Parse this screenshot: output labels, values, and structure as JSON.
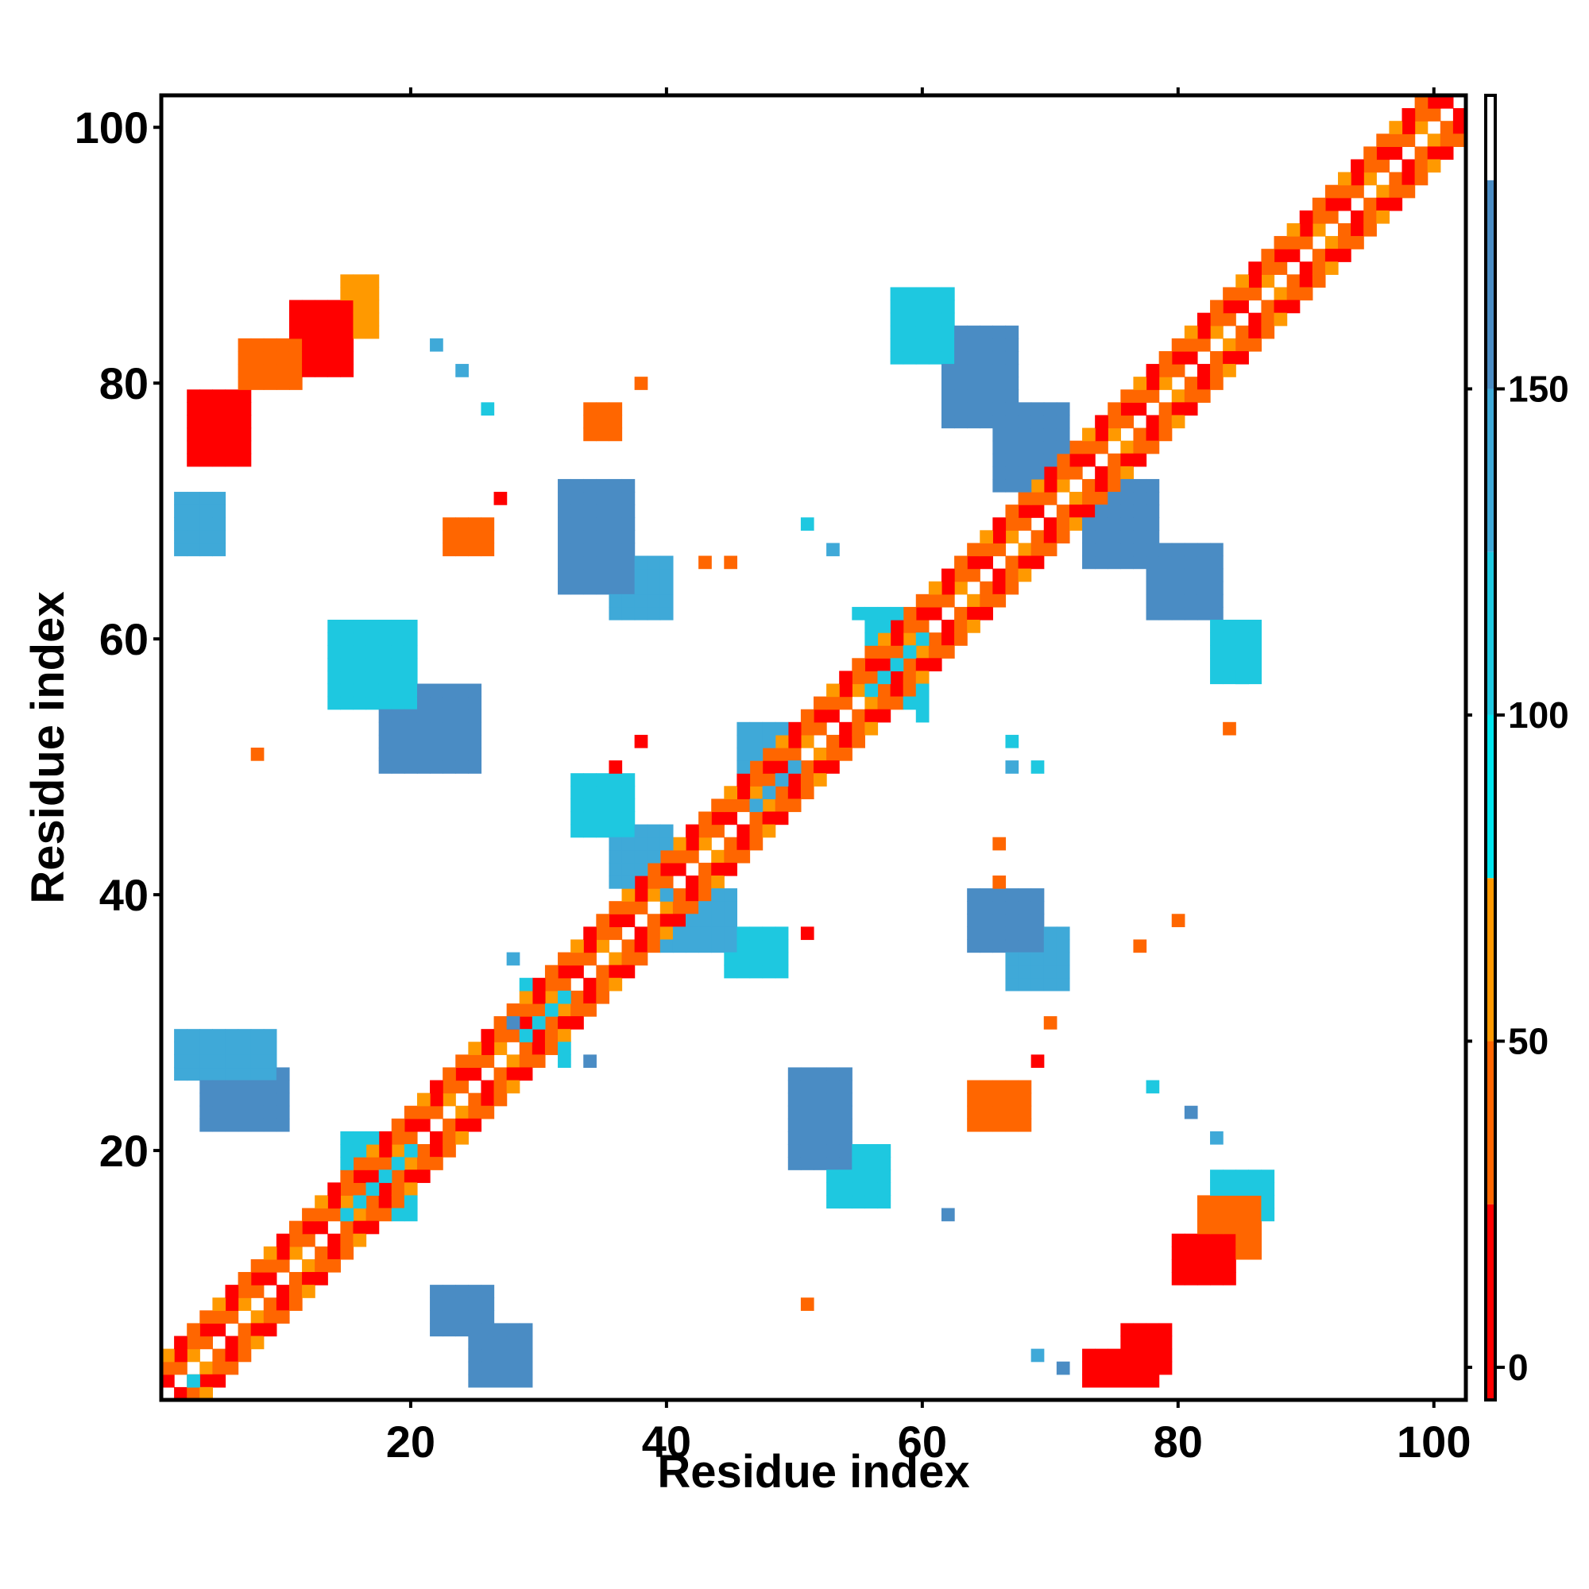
{
  "chart_data": {
    "type": "heatmap",
    "title": "",
    "xlabel": "Residue index",
    "ylabel": "Residue index",
    "xlim": [
      1,
      102
    ],
    "ylim": [
      1,
      102
    ],
    "x_ticks": [
      20,
      40,
      60,
      80,
      100
    ],
    "y_ticks": [
      20,
      40,
      60,
      80,
      100
    ],
    "colorbar": {
      "ticks": [
        0,
        50,
        100,
        150
      ],
      "range": [
        -5,
        195
      ],
      "bands": [
        {
          "from": -5,
          "to": 25,
          "color": "#ff0000"
        },
        {
          "from": 25,
          "to": 50,
          "color": "#ff6600"
        },
        {
          "from": 50,
          "to": 75,
          "color": "#ff9900"
        },
        {
          "from": 75,
          "to": 100,
          "color": "#00e5ee"
        },
        {
          "from": 100,
          "to": 125,
          "color": "#1ec8e0"
        },
        {
          "from": 125,
          "to": 150,
          "color": "#3fa9d8"
        },
        {
          "from": 150,
          "to": 182,
          "color": "#4a8cc4"
        },
        {
          "from": 182,
          "to": 195,
          "color": "#ffffff"
        }
      ]
    },
    "grid": false,
    "diagonal_bands": [
      {
        "offset": 1,
        "pattern": [
          "#ff6600",
          "#ff0000",
          "#ff6600",
          "#ff9900"
        ]
      },
      {
        "offset": 2,
        "pattern": [
          "#ff0000",
          "#ff6600",
          "#ff0000",
          "#ff6600"
        ]
      },
      {
        "offset": 3,
        "pattern": [
          "#ff6600",
          "#ff9900",
          "#ff0000",
          "#ff6600"
        ]
      }
    ],
    "regions": [
      {
        "x": [
          2,
          9
        ],
        "y": [
          26,
          29
        ],
        "color": "#3fa9d8"
      },
      {
        "x": [
          4,
          10
        ],
        "y": [
          22,
          26
        ],
        "color": "#4a8cc4"
      },
      {
        "x": [
          2,
          5
        ],
        "y": [
          67,
          71
        ],
        "color": "#3fa9d8"
      },
      {
        "x": [
          3,
          7
        ],
        "y": [
          74,
          79
        ],
        "color": "#ff0000"
      },
      {
        "x": [
          7,
          11
        ],
        "y": [
          80,
          83
        ],
        "color": "#ff6600"
      },
      {
        "x": [
          11,
          15
        ],
        "y": [
          81,
          86
        ],
        "color": "#ff0000"
      },
      {
        "x": [
          15,
          17
        ],
        "y": [
          84,
          88
        ],
        "color": "#ff9900"
      },
      {
        "x": [
          15,
          20
        ],
        "y": [
          15,
          21
        ],
        "color": "#1ec8e0"
      },
      {
        "x": [
          22,
          26
        ],
        "y": [
          6,
          9
        ],
        "color": "#4a8cc4"
      },
      {
        "x": [
          25,
          29
        ],
        "y": [
          2,
          6
        ],
        "color": "#4a8cc4"
      },
      {
        "x": [
          29,
          32
        ],
        "y": [
          28,
          33
        ],
        "color": "#1ec8e0"
      },
      {
        "x": [
          14,
          20
        ],
        "y": [
          55,
          61
        ],
        "color": "#1ec8e0"
      },
      {
        "x": [
          18,
          25
        ],
        "y": [
          50,
          56
        ],
        "color": "#4a8cc4"
      },
      {
        "x": [
          23,
          26
        ],
        "y": [
          67,
          69
        ],
        "color": "#ff6600"
      },
      {
        "x": [
          32,
          37
        ],
        "y": [
          64,
          72
        ],
        "color": "#4a8cc4"
      },
      {
        "x": [
          36,
          40
        ],
        "y": [
          62,
          66
        ],
        "color": "#3fa9d8"
      },
      {
        "x": [
          34,
          36
        ],
        "y": [
          76,
          78
        ],
        "color": "#ff6600"
      },
      {
        "x": [
          33,
          37
        ],
        "y": [
          45,
          49
        ],
        "color": "#1ec8e0"
      },
      {
        "x": [
          36,
          40
        ],
        "y": [
          41,
          45
        ],
        "color": "#3fa9d8"
      },
      {
        "x": [
          40,
          45
        ],
        "y": [
          36,
          40
        ],
        "color": "#3fa9d8"
      },
      {
        "x": [
          45,
          49
        ],
        "y": [
          34,
          37
        ],
        "color": "#1ec8e0"
      },
      {
        "x": [
          46,
          50
        ],
        "y": [
          47,
          53
        ],
        "color": "#3fa9d8"
      },
      {
        "x": [
          50,
          54
        ],
        "y": [
          19,
          26
        ],
        "color": "#4a8cc4"
      },
      {
        "x": [
          53,
          57
        ],
        "y": [
          16,
          20
        ],
        "color": "#1ec8e0"
      },
      {
        "x": [
          56,
          60
        ],
        "y": [
          55,
          62
        ],
        "color": "#1ec8e0"
      },
      {
        "x": [
          58,
          62
        ],
        "y": [
          82,
          87
        ],
        "color": "#1ec8e0"
      },
      {
        "x": [
          62,
          67
        ],
        "y": [
          77,
          84
        ],
        "color": "#4a8cc4"
      },
      {
        "x": [
          66,
          71
        ],
        "y": [
          72,
          78
        ],
        "color": "#4a8cc4"
      },
      {
        "x": [
          64,
          69
        ],
        "y": [
          36,
          40
        ],
        "color": "#4a8cc4"
      },
      {
        "x": [
          67,
          71
        ],
        "y": [
          33,
          37
        ],
        "color": "#3fa9d8"
      },
      {
        "x": [
          64,
          68
        ],
        "y": [
          22,
          25
        ],
        "color": "#ff6600"
      },
      {
        "x": [
          73,
          78
        ],
        "y": [
          2,
          4
        ],
        "color": "#ff0000"
      },
      {
        "x": [
          76,
          79
        ],
        "y": [
          3,
          6
        ],
        "color": "#ff0000"
      },
      {
        "x": [
          80,
          84
        ],
        "y": [
          10,
          13
        ],
        "color": "#ff0000"
      },
      {
        "x": [
          82,
          86
        ],
        "y": [
          12,
          16
        ],
        "color": "#ff6600"
      },
      {
        "x": [
          83,
          87
        ],
        "y": [
          15,
          18
        ],
        "color": "#1ec8e0"
      },
      {
        "x": [
          73,
          78
        ],
        "y": [
          66,
          72
        ],
        "color": "#4a8cc4"
      },
      {
        "x": [
          78,
          83
        ],
        "y": [
          62,
          67
        ],
        "color": "#4a8cc4"
      },
      {
        "x": [
          83,
          86
        ],
        "y": [
          57,
          61
        ],
        "color": "#1ec8e0"
      }
    ],
    "points": [
      [
        8,
        51,
        "#ff6600"
      ],
      [
        28,
        30,
        "#4a8cc4"
      ],
      [
        28,
        35,
        "#3fa9d8"
      ],
      [
        32,
        27,
        "#1ec8e0"
      ],
      [
        34,
        27,
        "#4a8cc4"
      ],
      [
        43,
        66,
        "#ff6600"
      ],
      [
        45,
        66,
        "#ff6600"
      ],
      [
        38,
        80,
        "#ff6600"
      ],
      [
        27,
        71,
        "#ff0000"
      ],
      [
        22,
        83,
        "#3fa9d8"
      ],
      [
        24,
        81,
        "#3fa9d8"
      ],
      [
        26,
        78,
        "#1ec8e0"
      ],
      [
        36,
        50,
        "#ff0000"
      ],
      [
        38,
        52,
        "#ff0000"
      ],
      [
        51,
        37,
        "#ff0000"
      ],
      [
        51,
        8,
        "#ff6600"
      ],
      [
        62,
        15,
        "#4a8cc4"
      ],
      [
        66,
        44,
        "#ff6600"
      ],
      [
        66,
        41,
        "#ff6600"
      ],
      [
        70,
        30,
        "#ff6600"
      ],
      [
        69,
        27,
        "#ff0000"
      ],
      [
        80,
        38,
        "#ff6600"
      ],
      [
        77,
        36,
        "#ff6600"
      ],
      [
        78,
        25,
        "#1ec8e0"
      ],
      [
        81,
        23,
        "#4a8cc4"
      ],
      [
        83,
        21,
        "#3fa9d8"
      ],
      [
        69,
        4,
        "#3fa9d8"
      ],
      [
        71,
        3,
        "#4a8cc4"
      ],
      [
        51,
        69,
        "#1ec8e0"
      ],
      [
        53,
        67,
        "#3fa9d8"
      ],
      [
        60,
        54,
        "#1ec8e0"
      ],
      [
        55,
        62,
        "#1ec8e0"
      ],
      [
        67,
        52,
        "#1ec8e0"
      ],
      [
        67,
        50,
        "#3fa9d8"
      ],
      [
        69,
        50,
        "#1ec8e0"
      ],
      [
        85,
        57,
        "#1ec8e0"
      ],
      [
        84,
        53,
        "#ff6600"
      ],
      [
        3,
        2,
        "#1ec8e0"
      ],
      [
        4,
        1,
        "#ff9900"
      ]
    ]
  }
}
